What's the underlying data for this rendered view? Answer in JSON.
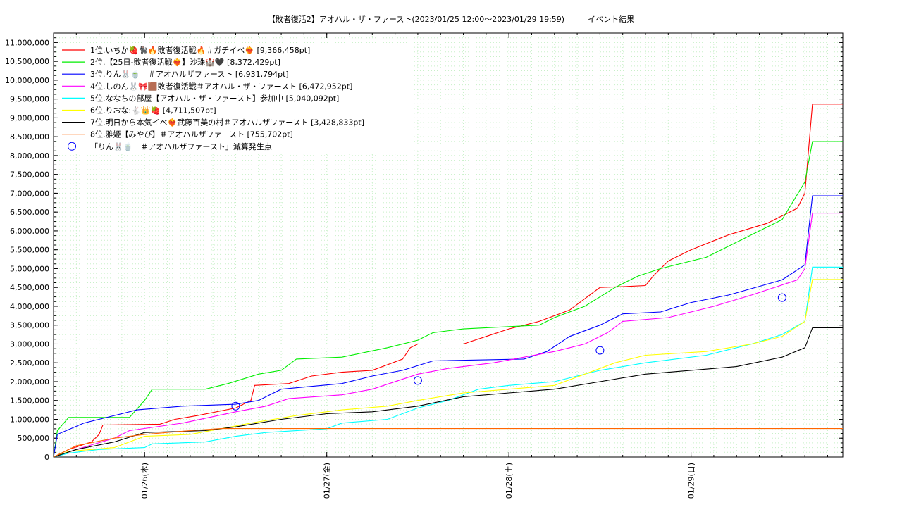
{
  "chart_data": {
    "type": "line",
    "title": "【敗者復活2】アオハル・ザ・ファースト(2023/01/25 12:00〜2023/01/29 19:59)　　　イベント結果",
    "x_start": "2023/01/25 12:00",
    "x_end": "2023/01/29 20:00",
    "xticks": [
      {
        "t": "2023/01/26 00:00",
        "label": "01/26(木)"
      },
      {
        "t": "2023/01/27 00:00",
        "label": "01/27(金)"
      },
      {
        "t": "2023/01/28 00:00",
        "label": "01/28(土)"
      },
      {
        "t": "2023/01/29 00:00",
        "label": "01/29(日)"
      }
    ],
    "ylim": [
      0,
      11250000
    ],
    "yticks": [
      0,
      500000,
      1000000,
      1500000,
      2000000,
      2500000,
      3000000,
      3500000,
      4000000,
      4500000,
      5000000,
      5500000,
      6000000,
      6500000,
      7000000,
      7500000,
      8000000,
      8500000,
      9000000,
      9500000,
      10000000,
      10500000,
      11000000
    ],
    "ytick_labels": [
      "0",
      "500,000",
      "1,000,000",
      "1,500,000",
      "2,000,000",
      "2,500,000",
      "3,000,000",
      "3,500,000",
      "4,000,000",
      "4,500,000",
      "5,000,000",
      "5,500,000",
      "6,000,000",
      "6,500,000",
      "7,000,000",
      "7,500,000",
      "8,000,000",
      "8,500,000",
      "9,000,000",
      "9,500,000",
      "10,000,000",
      "10,500,000",
      "11,000,000"
    ],
    "grid": true,
    "legend_position": "top-left",
    "series": [
      {
        "name": "1位.いちか🍓🐈‍⬛🔥敗者復活戦🔥＃ガチイベ❤️‍🔥 [9,366,458pt]",
        "color": "#ff0000",
        "points": [
          [
            "2023/01/25 12:00",
            0
          ],
          [
            "2023/01/25 14:00",
            200000
          ],
          [
            "2023/01/25 17:00",
            400000
          ],
          [
            "2023/01/25 18:00",
            600000
          ],
          [
            "2023/01/25 18:30",
            850000
          ],
          [
            "2023/01/26 02:00",
            870000
          ],
          [
            "2023/01/26 04:00",
            1000000
          ],
          [
            "2023/01/26 07:00",
            1100000
          ],
          [
            "2023/01/26 12:00",
            1300000
          ],
          [
            "2023/01/26 14:00",
            1500000
          ],
          [
            "2023/01/26 14:30",
            1900000
          ],
          [
            "2023/01/26 19:00",
            1950000
          ],
          [
            "2023/01/26 22:00",
            2150000
          ],
          [
            "2023/01/27 02:00",
            2250000
          ],
          [
            "2023/01/27 06:00",
            2300000
          ],
          [
            "2023/01/27 10:00",
            2600000
          ],
          [
            "2023/01/27 11:00",
            2900000
          ],
          [
            "2023/01/27 12:00",
            3000000
          ],
          [
            "2023/01/27 18:00",
            3000000
          ],
          [
            "2023/01/27 21:00",
            3200000
          ],
          [
            "2023/01/28 00:00",
            3400000
          ],
          [
            "2023/01/28 04:00",
            3600000
          ],
          [
            "2023/01/28 08:00",
            3900000
          ],
          [
            "2023/01/28 12:00",
            4500000
          ],
          [
            "2023/01/28 15:00",
            4520000
          ],
          [
            "2023/01/28 18:00",
            4550000
          ],
          [
            "2023/01/28 19:00",
            4800000
          ],
          [
            "2023/01/28 21:00",
            5200000
          ],
          [
            "2023/01/29 00:00",
            5500000
          ],
          [
            "2023/01/29 05:00",
            5900000
          ],
          [
            "2023/01/29 10:00",
            6200000
          ],
          [
            "2023/01/29 14:00",
            6600000
          ],
          [
            "2023/01/29 15:00",
            7000000
          ],
          [
            "2023/01/29 16:00",
            9366458
          ],
          [
            "2023/01/29 20:00",
            9366458
          ]
        ]
      },
      {
        "name": "2位.【25日-敗者復活戦❤️‍🔥】沙珠🏰🖤 [8,372,429pt]",
        "color": "#00ee00",
        "points": [
          [
            "2023/01/25 12:00",
            0
          ],
          [
            "2023/01/25 12:30",
            700000
          ],
          [
            "2023/01/25 14:00",
            1050000
          ],
          [
            "2023/01/25 22:00",
            1050000
          ],
          [
            "2023/01/26 00:00",
            1500000
          ],
          [
            "2023/01/26 01:00",
            1800000
          ],
          [
            "2023/01/26 08:00",
            1800000
          ],
          [
            "2023/01/26 11:00",
            1950000
          ],
          [
            "2023/01/26 15:00",
            2200000
          ],
          [
            "2023/01/26 18:00",
            2300000
          ],
          [
            "2023/01/26 20:00",
            2600000
          ],
          [
            "2023/01/27 02:00",
            2650000
          ],
          [
            "2023/01/27 08:00",
            2900000
          ],
          [
            "2023/01/27 12:00",
            3100000
          ],
          [
            "2023/01/27 14:00",
            3300000
          ],
          [
            "2023/01/27 18:00",
            3400000
          ],
          [
            "2023/01/28 04:00",
            3500000
          ],
          [
            "2023/01/28 06:00",
            3700000
          ],
          [
            "2023/01/28 10:00",
            4000000
          ],
          [
            "2023/01/28 14:00",
            4500000
          ],
          [
            "2023/01/28 17:00",
            4800000
          ],
          [
            "2023/01/28 20:00",
            5000000
          ],
          [
            "2023/01/29 02:00",
            5300000
          ],
          [
            "2023/01/29 08:00",
            5900000
          ],
          [
            "2023/01/29 12:00",
            6300000
          ],
          [
            "2023/01/29 15:00",
            7300000
          ],
          [
            "2023/01/29 16:00",
            8372429
          ],
          [
            "2023/01/29 20:00",
            8372429
          ]
        ]
      },
      {
        "name": "3位.りん🐰🍵　＃アオハルザファースト [6,931,794pt]",
        "color": "#0000ff",
        "points": [
          [
            "2023/01/25 12:00",
            0
          ],
          [
            "2023/01/25 12:30",
            600000
          ],
          [
            "2023/01/25 16:00",
            900000
          ],
          [
            "2023/01/25 20:00",
            1100000
          ],
          [
            "2023/01/25 23:00",
            1250000
          ],
          [
            "2023/01/26 05:00",
            1350000
          ],
          [
            "2023/01/26 12:00",
            1400000
          ],
          [
            "2023/01/26 15:00",
            1500000
          ],
          [
            "2023/01/26 18:00",
            1800000
          ],
          [
            "2023/01/27 02:00",
            1950000
          ],
          [
            "2023/01/27 06:00",
            2150000
          ],
          [
            "2023/01/27 10:00",
            2300000
          ],
          [
            "2023/01/27 14:00",
            2550000
          ],
          [
            "2023/01/28 02:00",
            2600000
          ],
          [
            "2023/01/28 05:00",
            2800000
          ],
          [
            "2023/01/28 08:00",
            3200000
          ],
          [
            "2023/01/28 12:00",
            3500000
          ],
          [
            "2023/01/28 15:00",
            3800000
          ],
          [
            "2023/01/28 20:00",
            3850000
          ],
          [
            "2023/01/29 00:00",
            4100000
          ],
          [
            "2023/01/29 05:00",
            4300000
          ],
          [
            "2023/01/29 12:00",
            4700000
          ],
          [
            "2023/01/29 15:00",
            5100000
          ],
          [
            "2023/01/29 16:00",
            6931794
          ],
          [
            "2023/01/29 20:00",
            6931794
          ]
        ]
      },
      {
        "name": "4位.しのん🐰🎀🟫敗者復活戦＃アオハル・ザ・ファースト [6,472,952pt]",
        "color": "#ff00ff",
        "points": [
          [
            "2023/01/25 12:00",
            0
          ],
          [
            "2023/01/25 15:00",
            200000
          ],
          [
            "2023/01/25 20:00",
            500000
          ],
          [
            "2023/01/25 22:00",
            700000
          ],
          [
            "2023/01/26 05:00",
            900000
          ],
          [
            "2023/01/26 12:00",
            1200000
          ],
          [
            "2023/01/26 16:00",
            1350000
          ],
          [
            "2023/01/26 19:00",
            1550000
          ],
          [
            "2023/01/27 02:00",
            1650000
          ],
          [
            "2023/01/27 06:00",
            1800000
          ],
          [
            "2023/01/27 12:00",
            2200000
          ],
          [
            "2023/01/27 16:00",
            2350000
          ],
          [
            "2023/01/27 22:00",
            2500000
          ],
          [
            "2023/01/28 06:00",
            2800000
          ],
          [
            "2023/01/28 10:00",
            3000000
          ],
          [
            "2023/01/28 13:00",
            3300000
          ],
          [
            "2023/01/28 15:00",
            3600000
          ],
          [
            "2023/01/28 21:00",
            3700000
          ],
          [
            "2023/01/29 03:00",
            4000000
          ],
          [
            "2023/01/29 08:00",
            4300000
          ],
          [
            "2023/01/29 14:00",
            4700000
          ],
          [
            "2023/01/29 15:00",
            5000000
          ],
          [
            "2023/01/29 16:00",
            6472952
          ],
          [
            "2023/01/29 20:00",
            6472952
          ]
        ]
      },
      {
        "name": "5位.ななちの部屋【アオハル・ザ・ファースト】参加中 [5,040,092pt]",
        "color": "#00ffff",
        "points": [
          [
            "2023/01/25 12:00",
            0
          ],
          [
            "2023/01/25 14:00",
            100000
          ],
          [
            "2023/01/25 18:00",
            200000
          ],
          [
            "2023/01/26 00:00",
            250000
          ],
          [
            "2023/01/26 01:00",
            350000
          ],
          [
            "2023/01/26 08:00",
            400000
          ],
          [
            "2023/01/26 12:00",
            550000
          ],
          [
            "2023/01/26 16:00",
            650000
          ],
          [
            "2023/01/27 00:00",
            750000
          ],
          [
            "2023/01/27 02:00",
            900000
          ],
          [
            "2023/01/27 08:00",
            1000000
          ],
          [
            "2023/01/27 12:00",
            1300000
          ],
          [
            "2023/01/27 16:00",
            1500000
          ],
          [
            "2023/01/27 20:00",
            1800000
          ],
          [
            "2023/01/28 00:00",
            1900000
          ],
          [
            "2023/01/28 06:00",
            2000000
          ],
          [
            "2023/01/28 12:00",
            2300000
          ],
          [
            "2023/01/28 18:00",
            2500000
          ],
          [
            "2023/01/29 02:00",
            2700000
          ],
          [
            "2023/01/29 08:00",
            3000000
          ],
          [
            "2023/01/29 12:00",
            3250000
          ],
          [
            "2023/01/29 15:00",
            3600000
          ],
          [
            "2023/01/29 16:00",
            5040092
          ],
          [
            "2023/01/29 20:00",
            5040092
          ]
        ]
      },
      {
        "name": "6位.りおな:🐇👑🍓 [4,711,507pt]",
        "color": "#ffff00",
        "points": [
          [
            "2023/01/25 12:00",
            0
          ],
          [
            "2023/01/25 14:00",
            150000
          ],
          [
            "2023/01/25 20:00",
            250000
          ],
          [
            "2023/01/26 00:00",
            550000
          ],
          [
            "2023/01/26 06:00",
            600000
          ],
          [
            "2023/01/26 10:00",
            750000
          ],
          [
            "2023/01/26 14:00",
            900000
          ],
          [
            "2023/01/26 20:00",
            1100000
          ],
          [
            "2023/01/27 02:00",
            1250000
          ],
          [
            "2023/01/27 08:00",
            1350000
          ],
          [
            "2023/01/27 12:00",
            1500000
          ],
          [
            "2023/01/27 18:00",
            1700000
          ],
          [
            "2023/01/28 00:00",
            1800000
          ],
          [
            "2023/01/28 06:00",
            1900000
          ],
          [
            "2023/01/28 10:00",
            2200000
          ],
          [
            "2023/01/28 14:00",
            2500000
          ],
          [
            "2023/01/28 18:00",
            2700000
          ],
          [
            "2023/01/29 02:00",
            2800000
          ],
          [
            "2023/01/29 08:00",
            3000000
          ],
          [
            "2023/01/29 12:00",
            3200000
          ],
          [
            "2023/01/29 15:00",
            3600000
          ],
          [
            "2023/01/29 16:00",
            4711507
          ],
          [
            "2023/01/29 20:00",
            4711507
          ]
        ]
      },
      {
        "name": "7位.明日から本気イベ❤️‍🔥武藤百美の村＃アオハルザファースト [3,428,833pt]",
        "color": "#000000",
        "points": [
          [
            "2023/01/25 12:00",
            0
          ],
          [
            "2023/01/25 15:00",
            200000
          ],
          [
            "2023/01/25 20:00",
            400000
          ],
          [
            "2023/01/26 00:00",
            650000
          ],
          [
            "2023/01/26 08:00",
            700000
          ],
          [
            "2023/01/26 12:00",
            800000
          ],
          [
            "2023/01/26 18:00",
            1000000
          ],
          [
            "2023/01/27 00:00",
            1150000
          ],
          [
            "2023/01/27 06:00",
            1200000
          ],
          [
            "2023/01/27 12:00",
            1350000
          ],
          [
            "2023/01/27 18:00",
            1600000
          ],
          [
            "2023/01/28 00:00",
            1700000
          ],
          [
            "2023/01/28 06:00",
            1800000
          ],
          [
            "2023/01/28 12:00",
            2000000
          ],
          [
            "2023/01/28 18:00",
            2200000
          ],
          [
            "2023/01/29 00:00",
            2300000
          ],
          [
            "2023/01/29 06:00",
            2400000
          ],
          [
            "2023/01/29 12:00",
            2650000
          ],
          [
            "2023/01/29 15:00",
            2900000
          ],
          [
            "2023/01/29 16:00",
            3428833
          ],
          [
            "2023/01/29 20:00",
            3428833
          ]
        ]
      },
      {
        "name": "8位.雅姫【みやび】＃アオハルザファースト [755,702pt]",
        "color": "#ff6600",
        "points": [
          [
            "2023/01/25 12:00",
            0
          ],
          [
            "2023/01/25 15:00",
            300000
          ],
          [
            "2023/01/25 20:00",
            500000
          ],
          [
            "2023/01/26 00:00",
            600000
          ],
          [
            "2023/01/26 06:00",
            700000
          ],
          [
            "2023/01/26 10:00",
            755702
          ],
          [
            "2023/01/29 20:00",
            755702
          ]
        ]
      }
    ],
    "marker_series": {
      "name": "「りん🐰🍵　＃アオハルザファースト」減算発生点",
      "color": "#0000ff",
      "points": [
        [
          "2023/01/26 12:00",
          1350000
        ],
        [
          "2023/01/27 12:00",
          2030000
        ],
        [
          "2023/01/28 12:00",
          2830000
        ],
        [
          "2023/01/29 12:00",
          4230000
        ]
      ]
    }
  }
}
